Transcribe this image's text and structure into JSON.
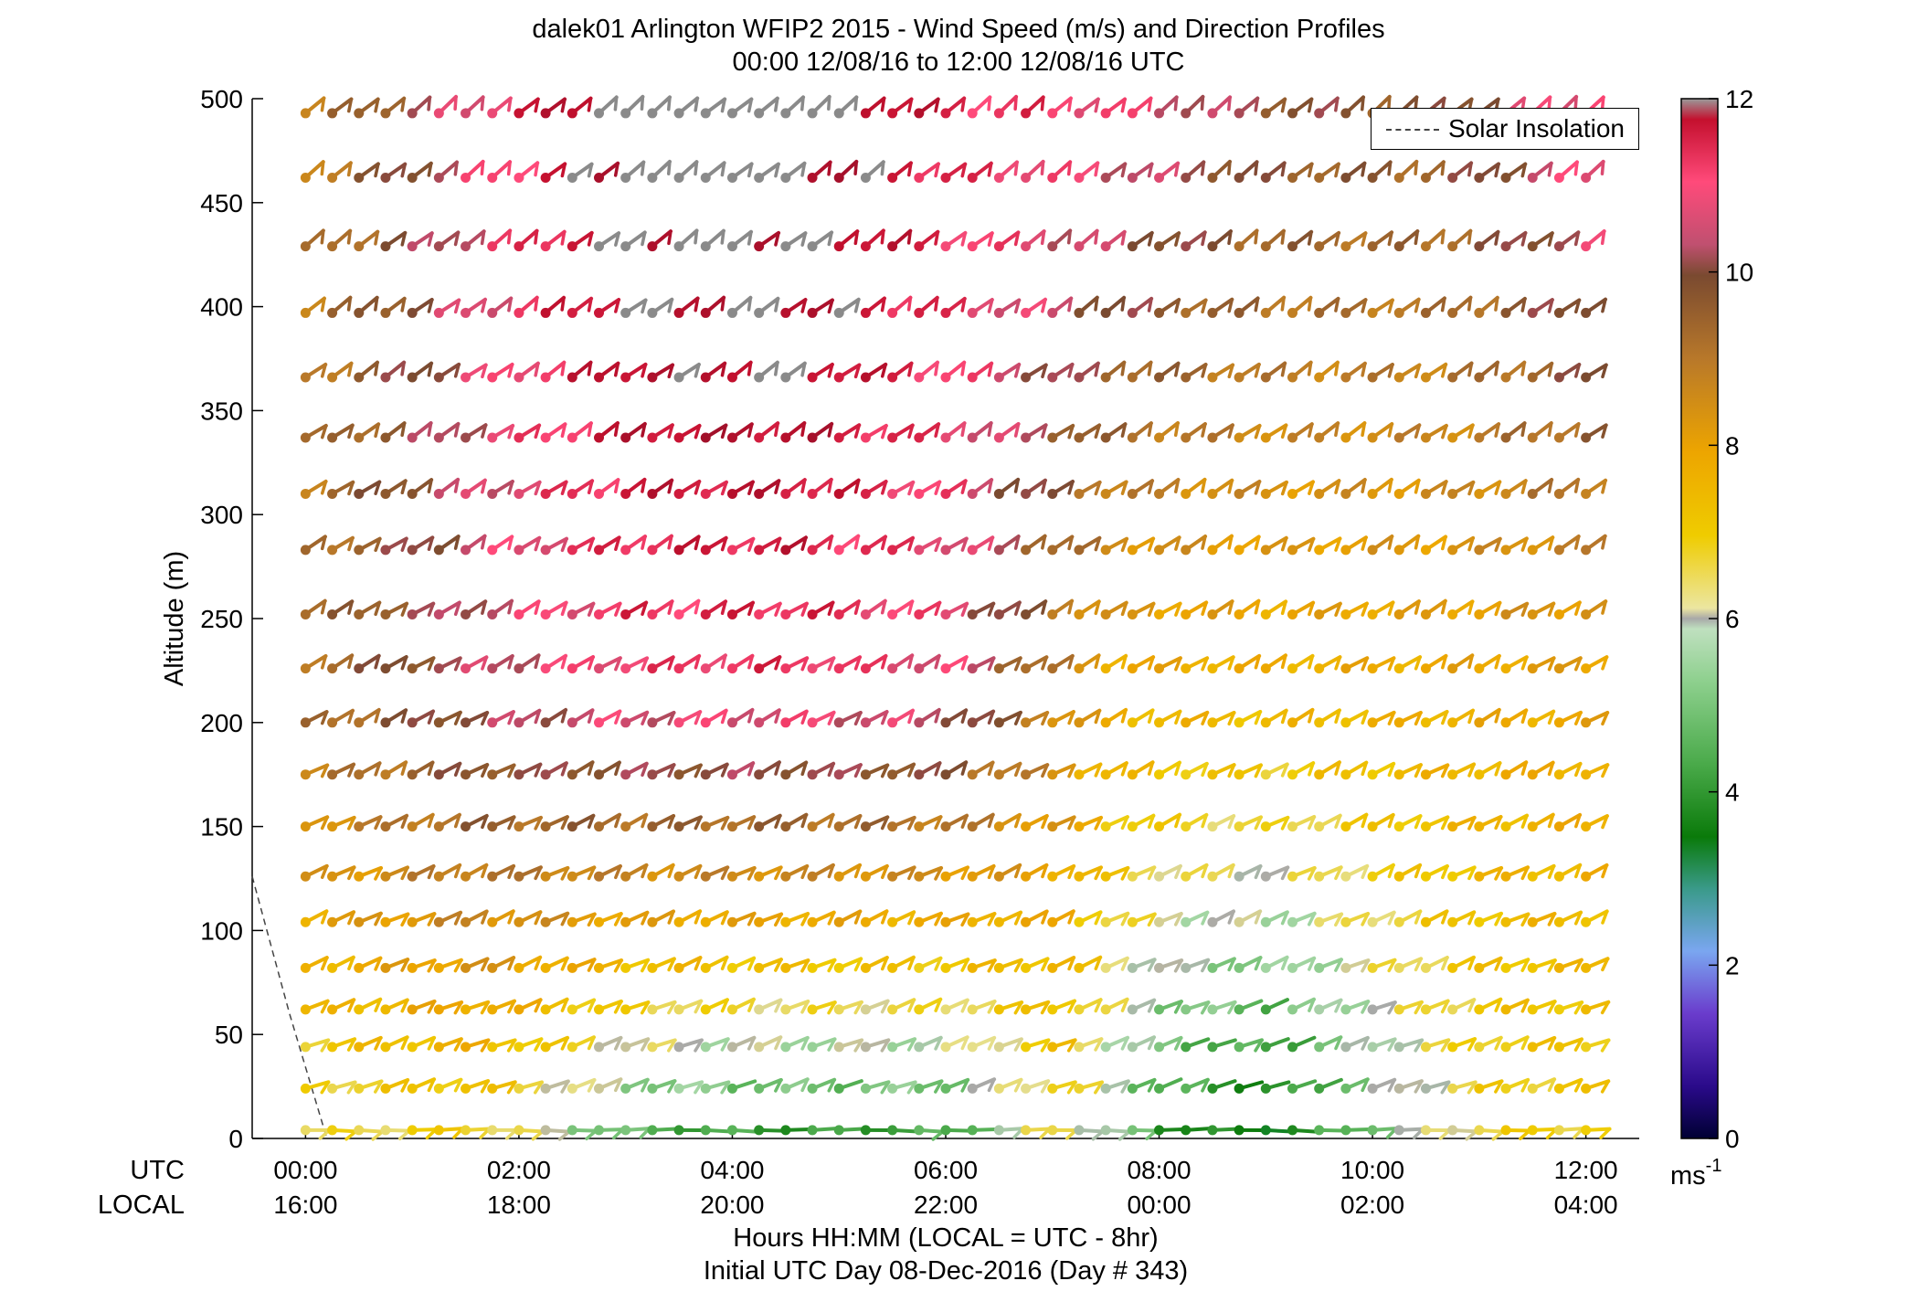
{
  "title": "dalek01 Arlington WFIP2 2015 - Wind Speed (m/s) and Direction Profiles",
  "subtitle": "00:00 12/08/16 to 12:00 12/08/16  UTC",
  "legend": {
    "label": "Solar Insolation",
    "line_color": "#444444"
  },
  "xaxis": {
    "utc_row_label": "UTC",
    "local_row_label": "LOCAL",
    "utc_ticks": [
      "00:00",
      "02:00",
      "04:00",
      "06:00",
      "08:00",
      "10:00",
      "12:00"
    ],
    "local_ticks": [
      "16:00",
      "18:00",
      "20:00",
      "22:00",
      "00:00",
      "02:00",
      "04:00"
    ],
    "label_line1": "Hours HH:MM  (LOCAL = UTC - 8hr)",
    "label_line2": "Initial UTC Day 08-Dec-2016 (Day # 343)"
  },
  "yaxis": {
    "label": "Altitude (m)",
    "ticks": [
      "0",
      "50",
      "100",
      "150",
      "200",
      "250",
      "300",
      "350",
      "400",
      "450",
      "500"
    ]
  },
  "colorbar": {
    "ticks": [
      "0",
      "2",
      "4",
      "6",
      "8",
      "10",
      "12"
    ],
    "unit_base": "ms",
    "unit_exp": "-1"
  },
  "chart_data": {
    "type": "wind_barb_profile",
    "x_unit": "hours UTC",
    "y_unit": "m",
    "xlim": [
      -0.5,
      12.5
    ],
    "ylim": [
      0,
      500
    ],
    "speed_range_ms": [
      0,
      12
    ],
    "time_step_hours": 0.25,
    "time_count": 49,
    "altitudes_m": [
      4,
      24,
      44,
      62,
      82,
      104,
      126,
      150,
      175,
      200,
      226,
      252,
      283,
      310,
      337,
      366,
      397,
      429,
      462,
      493
    ],
    "speed_keys": [
      {
        "time": 0,
        "spd": 6.5
      },
      {
        "time": 1.5,
        "spd": 7.0
      },
      {
        "time": 3.0,
        "spd": 5.0
      },
      {
        "time": 4.5,
        "spd": 4.5
      },
      {
        "time": 6.0,
        "spd": 4.8
      },
      {
        "time": 7.0,
        "spd": 6.8
      },
      {
        "time": 8.0,
        "spd": 4.5
      },
      {
        "time": 9.0,
        "spd": 3.8
      },
      {
        "time": 10.0,
        "spd": 5.5
      },
      {
        "time": 11.0,
        "spd": 6.8
      },
      {
        "time": 12.0,
        "spd": 7.0
      }
    ],
    "speed_mid_keys": [
      {
        "time": 0,
        "spd": 9.2
      },
      {
        "time": 1.5,
        "spd": 10.2
      },
      {
        "time": 3.0,
        "spd": 10.8
      },
      {
        "time": 4.5,
        "spd": 11.0
      },
      {
        "time": 6.0,
        "spd": 10.5
      },
      {
        "time": 7.5,
        "spd": 7.8
      },
      {
        "time": 9.0,
        "spd": 7.6
      },
      {
        "time": 10.5,
        "spd": 7.8
      },
      {
        "time": 12.0,
        "spd": 8.0
      }
    ],
    "speed_top_keys": [
      {
        "time": 0,
        "spd": 8.8
      },
      {
        "time": 1.5,
        "spd": 10.6
      },
      {
        "time": 3.0,
        "spd": 12.5
      },
      {
        "time": 4.5,
        "spd": 12.5
      },
      {
        "time": 6.0,
        "spd": 11.2
      },
      {
        "time": 7.5,
        "spd": 10.8
      },
      {
        "time": 9.0,
        "spd": 9.8
      },
      {
        "time": 10.5,
        "spd": 9.6
      },
      {
        "time": 12.0,
        "spd": 11.0
      }
    ],
    "direction_note": "wind mostly from the southwest aloft, from the west near the surface"
  }
}
